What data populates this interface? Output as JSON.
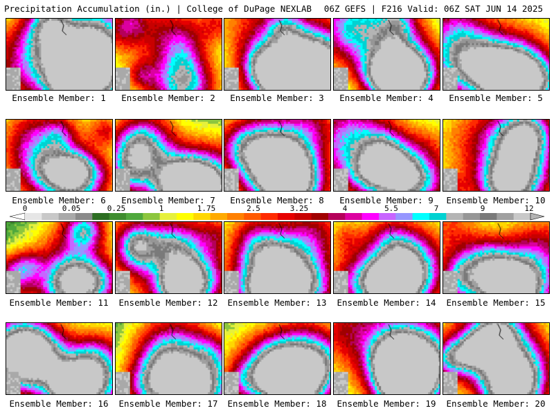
{
  "header": {
    "left": "Precipitation Accumulation (in.) | College of DuPage NEXLAB",
    "right": "06Z GEFS | F216 Valid: 06Z SAT JUN 14 2025"
  },
  "members": [
    {
      "label": "Ensemble Member: 1"
    },
    {
      "label": "Ensemble Member: 2"
    },
    {
      "label": "Ensemble Member: 3"
    },
    {
      "label": "Ensemble Member: 4"
    },
    {
      "label": "Ensemble Member: 5"
    },
    {
      "label": "Ensemble Member: 6"
    },
    {
      "label": "Ensemble Member: 7"
    },
    {
      "label": "Ensemble Member: 8"
    },
    {
      "label": "Ensemble Member: 9"
    },
    {
      "label": "Ensemble Member: 10"
    },
    {
      "label": "Ensemble Member: 11"
    },
    {
      "label": "Ensemble Member: 12"
    },
    {
      "label": "Ensemble Member: 13"
    },
    {
      "label": "Ensemble Member: 14"
    },
    {
      "label": "Ensemble Member: 15"
    },
    {
      "label": "Ensemble Member: 16"
    },
    {
      "label": "Ensemble Member: 17"
    },
    {
      "label": "Ensemble Member: 18"
    },
    {
      "label": "Ensemble Member: 19"
    },
    {
      "label": "Ensemble Member: 20"
    }
  ],
  "legend": {
    "labels": [
      "0",
      "0.05",
      "0.25",
      "1",
      "1.75",
      "2.5",
      "3.25",
      "4",
      "5.5",
      "7",
      "9",
      "12"
    ],
    "colors": [
      "#e6e6e6",
      "#c8c8c8",
      "#a9a9a9",
      "#8a8a8a",
      "#2c6e22",
      "#3e8c2e",
      "#4fa83c",
      "#8cc63e",
      "#e6f03c",
      "#ffff00",
      "#ffd700",
      "#ffaa00",
      "#ff8000",
      "#ff5a00",
      "#ff2a00",
      "#e60000",
      "#c80000",
      "#a00000",
      "#b4005a",
      "#dc00a0",
      "#ff00ff",
      "#c864ff",
      "#9696ff",
      "#00ffff",
      "#00d2d2",
      "#b4b4b4",
      "#969696",
      "#7a7a7a",
      "#a0a0a0",
      "#c8c8c8"
    ]
  }
}
